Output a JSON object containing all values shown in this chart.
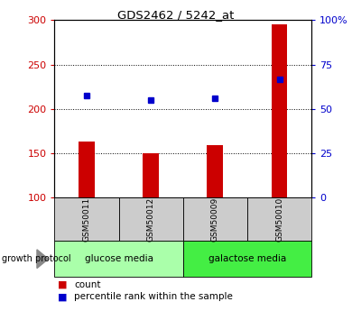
{
  "title": "GDS2462 / 5242_at",
  "samples": [
    "GSM50011",
    "GSM50012",
    "GSM50009",
    "GSM50010"
  ],
  "counts": [
    163,
    150,
    159,
    295
  ],
  "percentiles": [
    215,
    210,
    212,
    233
  ],
  "ylim_left": [
    100,
    300
  ],
  "ylim_right": [
    0,
    100
  ],
  "yticks_left": [
    100,
    150,
    200,
    250,
    300
  ],
  "yticks_right": [
    0,
    25,
    50,
    75,
    100
  ],
  "bar_color": "#cc0000",
  "dot_color": "#0000cc",
  "groups": [
    {
      "label": "glucose media",
      "indices": [
        0,
        1
      ],
      "color": "#aaffaa"
    },
    {
      "label": "galactose media",
      "indices": [
        2,
        3
      ],
      "color": "#44ee44"
    }
  ],
  "group_label": "growth protocol",
  "legend_count_label": "count",
  "legend_percentile_label": "percentile rank within the sample",
  "plot_bg_color": "#ffffff",
  "sample_row_bg": "#cccccc"
}
